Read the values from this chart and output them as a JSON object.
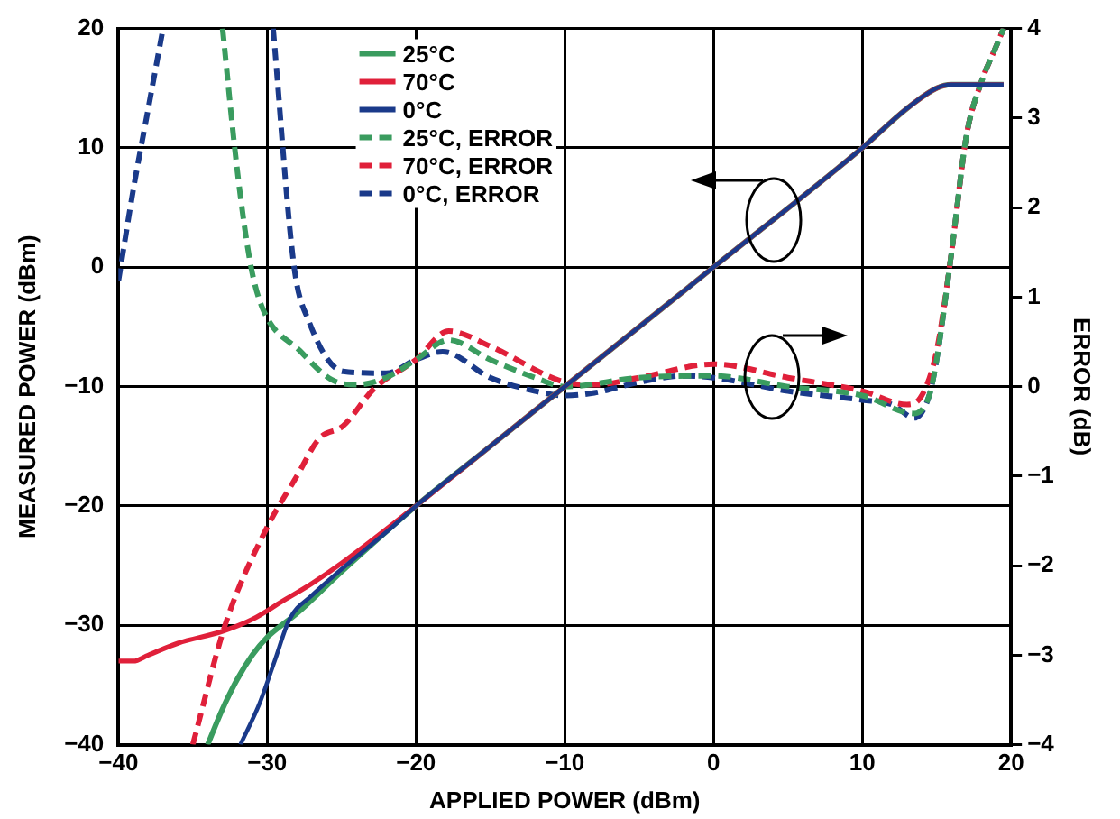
{
  "chart_data": {
    "type": "line",
    "xlabel": "APPLIED POWER (dBm)",
    "ylabel": "MEASURED POWER (dBm)",
    "y2label": "ERROR (dB)",
    "xlim": [
      -40,
      20
    ],
    "xticks": [
      -40,
      -30,
      -20,
      -10,
      0,
      10,
      20
    ],
    "ylim": [
      -40,
      20
    ],
    "yticks": [
      -40,
      -30,
      -20,
      -10,
      0,
      10,
      20
    ],
    "y2lim": [
      -4,
      4
    ],
    "y2ticks": [
      -4,
      -3,
      -2,
      -1,
      0,
      1,
      2,
      3,
      4
    ],
    "grid": true,
    "legend": "top",
    "marker": "none",
    "series": [
      {
        "name": "25°C",
        "color": "#3a9c5f",
        "line_style": "solid",
        "x": [
          -34,
          -33,
          -32,
          -31,
          -30,
          -28,
          -25,
          -20,
          -15,
          -10,
          0,
          10,
          13,
          15,
          16,
          19.5
        ],
        "values": [
          -40,
          -37,
          -34.5,
          -32.5,
          -31,
          -29,
          -25.5,
          -20,
          -15,
          -10,
          0,
          10,
          13.3,
          15,
          15.3,
          15.3
        ]
      },
      {
        "name": "70°C",
        "color": "#e0203a",
        "line_style": "solid",
        "x": [
          -40,
          -39,
          -38,
          -36,
          -33,
          -31,
          -29,
          -27,
          -25,
          -20,
          -15,
          -10,
          0,
          10,
          13,
          15,
          16,
          19.5
        ],
        "values": [
          -33,
          -33,
          -32.5,
          -31.5,
          -30.5,
          -29.5,
          -28,
          -26.5,
          -24.8,
          -20,
          -15,
          -10,
          0,
          10,
          13.3,
          15,
          15.3,
          15.3
        ]
      },
      {
        "name": "0°C",
        "color": "#1a3a8a",
        "line_style": "solid",
        "x": [
          -31.8,
          -30.5,
          -29.5,
          -28.5,
          -27,
          -25,
          -22,
          -20,
          -15,
          -10,
          0,
          10,
          13,
          15,
          16,
          19.5
        ],
        "values": [
          -40,
          -36.5,
          -33,
          -29.5,
          -27.5,
          -25.3,
          -22.2,
          -20,
          -15,
          -10,
          0,
          10,
          13.3,
          15,
          15.3,
          15.3
        ]
      },
      {
        "name": "25°C, ERROR",
        "color": "#3a9c5f",
        "line_style": "dashed",
        "axis": "y2",
        "x": [
          -33,
          -32,
          -31.1,
          -30.3,
          -27.8,
          -25.7,
          -24,
          -22,
          -20,
          -17.8,
          -15,
          -12,
          -10,
          -5,
          0,
          5,
          10,
          13.5,
          14.5,
          15,
          16,
          17,
          18,
          19,
          19.5
        ],
        "values": [
          4,
          2.4,
          1.35,
          0.87,
          0.4,
          0.08,
          0.02,
          0.1,
          0.3,
          0.52,
          0.3,
          0.1,
          0,
          0.1,
          0.12,
          0,
          -0.1,
          -0.3,
          -0.1,
          0.3,
          1.5,
          2.8,
          3.4,
          3.8,
          4
        ]
      },
      {
        "name": "70°C, ERROR",
        "color": "#e0203a",
        "line_style": "dashed",
        "axis": "y2",
        "x": [
          -35,
          -32.8,
          -30,
          -28,
          -26.5,
          -24.9,
          -22.8,
          -20,
          -17.8,
          -15,
          -10,
          -8,
          -5,
          0,
          5,
          10,
          13,
          14,
          15,
          16,
          17,
          18,
          19,
          19.5
        ],
        "values": [
          -4,
          -2.65,
          -1.57,
          -1,
          -0.58,
          -0.44,
          -0.02,
          0.3,
          0.62,
          0.45,
          0.05,
          0.02,
          0.1,
          0.25,
          0.1,
          -0.05,
          -0.2,
          -0.1,
          0.4,
          1.5,
          2.8,
          3.4,
          3.8,
          4
        ]
      },
      {
        "name": "0°C, ERROR",
        "color": "#1a3a8a",
        "line_style": "dashed",
        "axis": "y2",
        "x": [
          -40,
          -39,
          -38,
          -37,
          null,
          -29.6,
          -28.2,
          -27.2,
          -24.9,
          -22,
          -20,
          -18.2,
          -15,
          -12,
          -10,
          -8,
          -5,
          -2,
          0,
          5,
          10,
          12,
          13.5,
          14.5,
          15,
          16,
          17,
          18,
          19,
          19.5
        ],
        "values": [
          1.18,
          2.2,
          3.1,
          4,
          null,
          4,
          1.35,
          0.73,
          0.17,
          0.15,
          0.3,
          0.39,
          0.1,
          -0.05,
          -0.1,
          -0.07,
          0.05,
          0.12,
          0.1,
          -0.05,
          -0.15,
          -0.2,
          -0.35,
          -0.1,
          0.3,
          1.5,
          2.8,
          3.4,
          3.8,
          4
        ]
      }
    ]
  }
}
